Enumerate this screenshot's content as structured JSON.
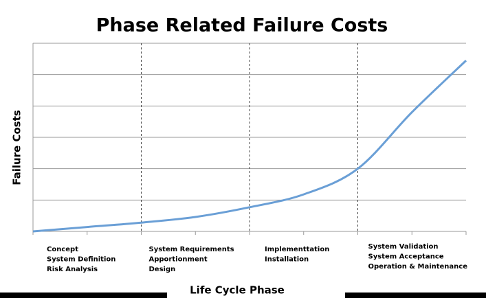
{
  "chart_data": {
    "type": "line",
    "title": "Phase Related Failure Costs",
    "x_label": "Life Cycle Phase",
    "y_label": "Failure Costs",
    "categories": [
      [
        "Concept",
        "System Definition",
        "Risk Analysis"
      ],
      [
        "System Requirements",
        "Apportionment",
        "Design"
      ],
      [
        "Implementtation",
        "Installation"
      ],
      [
        "System Validation",
        "System Acceptance",
        "Operation & Maintenance"
      ]
    ],
    "x": [
      0,
      0.5,
      1,
      1.5,
      2,
      2.5,
      3,
      3.5,
      4
    ],
    "xlim": [
      0,
      4
    ],
    "series": [
      {
        "name": null,
        "color": "#6a9fd6",
        "values": [
          0,
          0.14,
          0.28,
          0.46,
          0.77,
          1.18,
          2.0,
          3.8,
          5.45
        ]
      }
    ],
    "ylim": [
      0,
      6
    ],
    "yticks": [
      0,
      1,
      2,
      3,
      4,
      5,
      6
    ],
    "grid": true
  }
}
